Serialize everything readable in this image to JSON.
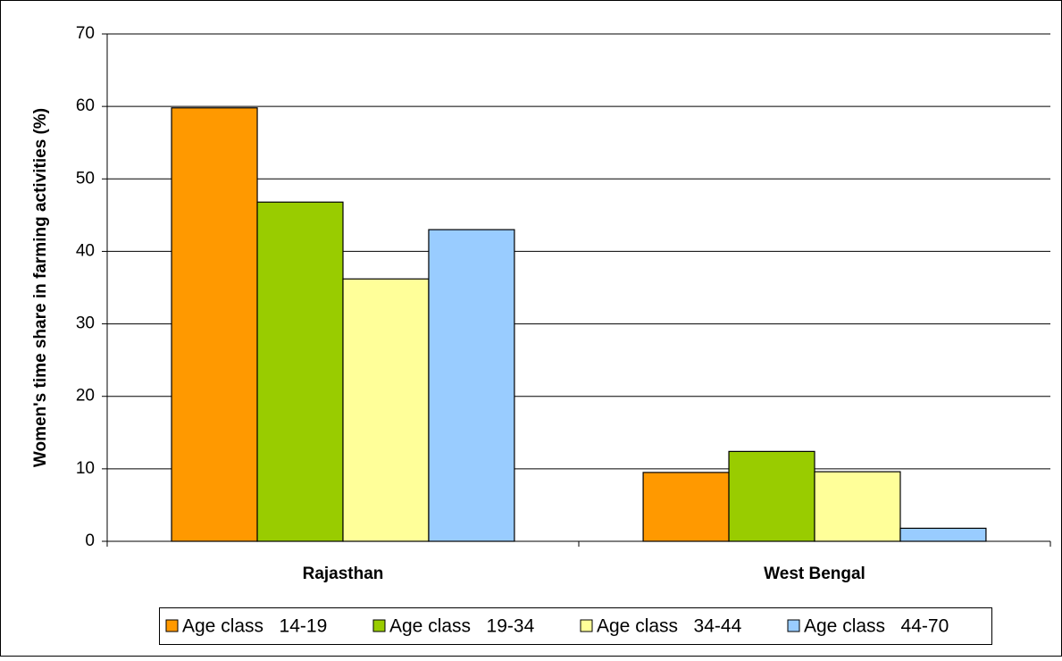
{
  "chart_data": {
    "type": "bar",
    "y_label": "Women's time share in farming activities (%)",
    "categories": [
      "Rajasthan",
      "West Bengal"
    ],
    "series": [
      {
        "name": "Age class   14-19",
        "color": "#ff9900",
        "values": [
          59.8,
          9.5
        ]
      },
      {
        "name": "Age class   19-34",
        "color": "#99cc00",
        "values": [
          46.8,
          12.4
        ]
      },
      {
        "name": "Age class   34-44",
        "color": "#ffff99",
        "values": [
          36.2,
          9.6
        ]
      },
      {
        "name": "Age class   44-70",
        "color": "#99ccff",
        "values": [
          43.0,
          1.8
        ]
      }
    ],
    "ylim": [
      0,
      70
    ],
    "yticks": [
      0,
      10,
      20,
      30,
      40,
      50,
      60,
      70
    ],
    "grid": true,
    "legend": "bottom"
  }
}
